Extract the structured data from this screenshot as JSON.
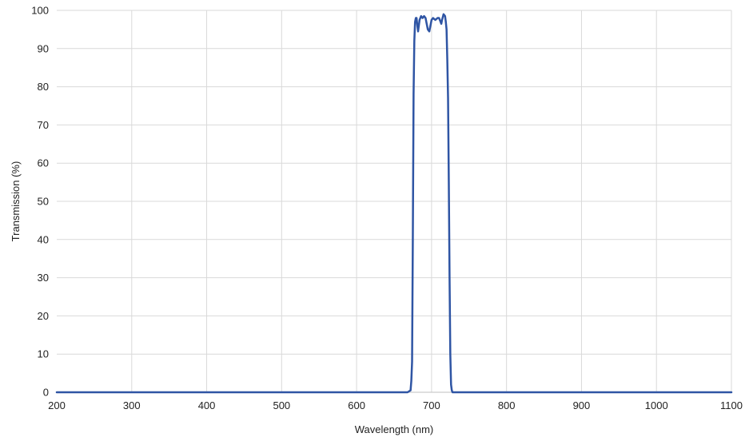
{
  "chart_data": {
    "type": "line",
    "title": "",
    "xlabel": "Wavelength (nm)",
    "ylabel": "Transmission (%)",
    "xlim": [
      200,
      1100
    ],
    "ylim": [
      0,
      100
    ],
    "x_ticks": [
      200,
      300,
      400,
      500,
      600,
      700,
      800,
      900,
      1000,
      1100
    ],
    "y_ticks": [
      0,
      10,
      20,
      30,
      40,
      50,
      60,
      70,
      80,
      90,
      100
    ],
    "x_tick_labels": [
      "200",
      "300",
      "400",
      "500",
      "600",
      "700",
      "800",
      "900",
      "1000",
      "1100"
    ],
    "y_tick_labels": [
      "0",
      "10",
      "20",
      "30",
      "40",
      "50",
      "60",
      "70",
      "80",
      "90",
      "100"
    ],
    "grid": true,
    "legend": "none",
    "series": [
      {
        "color": "#2f55a4",
        "points": [
          [
            200,
            0
          ],
          [
            668,
            0
          ],
          [
            672,
            0.5
          ],
          [
            673,
            3
          ],
          [
            674,
            8
          ],
          [
            675,
            40
          ],
          [
            676,
            78
          ],
          [
            677,
            92
          ],
          [
            678,
            97
          ],
          [
            679,
            98
          ],
          [
            680,
            98
          ],
          [
            681,
            96
          ],
          [
            682,
            94.5
          ],
          [
            683,
            96
          ],
          [
            684,
            97.5
          ],
          [
            686,
            98.5
          ],
          [
            688,
            98
          ],
          [
            690,
            98.5
          ],
          [
            692,
            98
          ],
          [
            693,
            97
          ],
          [
            695,
            95
          ],
          [
            697,
            94.5
          ],
          [
            698,
            95.5
          ],
          [
            700,
            97.5
          ],
          [
            702,
            98
          ],
          [
            705,
            97.5
          ],
          [
            708,
            98
          ],
          [
            710,
            98
          ],
          [
            712,
            97
          ],
          [
            713,
            96.5
          ],
          [
            714,
            97.5
          ],
          [
            716,
            99
          ],
          [
            718,
            98.5
          ],
          [
            719,
            97
          ],
          [
            720,
            95
          ],
          [
            721,
            87
          ],
          [
            722,
            77
          ],
          [
            723,
            55
          ],
          [
            724,
            30
          ],
          [
            725,
            10
          ],
          [
            726,
            2
          ],
          [
            727,
            0.5
          ],
          [
            728,
            0
          ],
          [
            1100,
            0
          ]
        ]
      }
    ]
  }
}
